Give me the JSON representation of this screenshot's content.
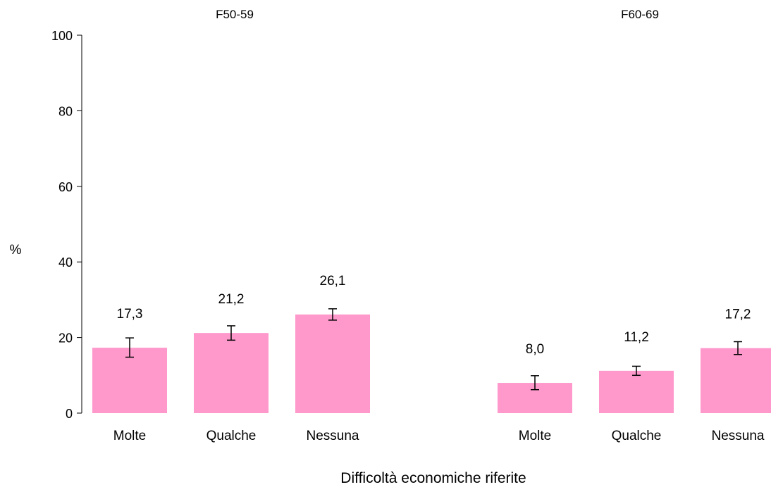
{
  "chart_data": {
    "type": "bar",
    "ylabel": "%",
    "xlabel": "Difficoltà economiche riferite",
    "ylim": [
      0,
      100
    ],
    "yticks": [
      0,
      20,
      40,
      60,
      80,
      100
    ],
    "bar_color": "#ff99cc",
    "grid": false,
    "legend": "none",
    "panels": [
      {
        "title": "F50-59",
        "categories": [
          "Molte",
          "Qualche",
          "Nessuna"
        ],
        "values": [
          17.3,
          21.2,
          26.1
        ],
        "value_labels": [
          "17,3",
          "21,2",
          "26,1"
        ],
        "ci_low": [
          14.8,
          19.3,
          24.6
        ],
        "ci_high": [
          19.9,
          23.1,
          27.6
        ]
      },
      {
        "title": "F60-69",
        "categories": [
          "Molte",
          "Qualche",
          "Nessuna"
        ],
        "values": [
          8.0,
          11.2,
          17.2
        ],
        "value_labels": [
          "8,0",
          "11,2",
          "17,2"
        ],
        "ci_low": [
          6.2,
          10.0,
          15.5
        ],
        "ci_high": [
          9.9,
          12.4,
          18.9
        ]
      }
    ]
  }
}
